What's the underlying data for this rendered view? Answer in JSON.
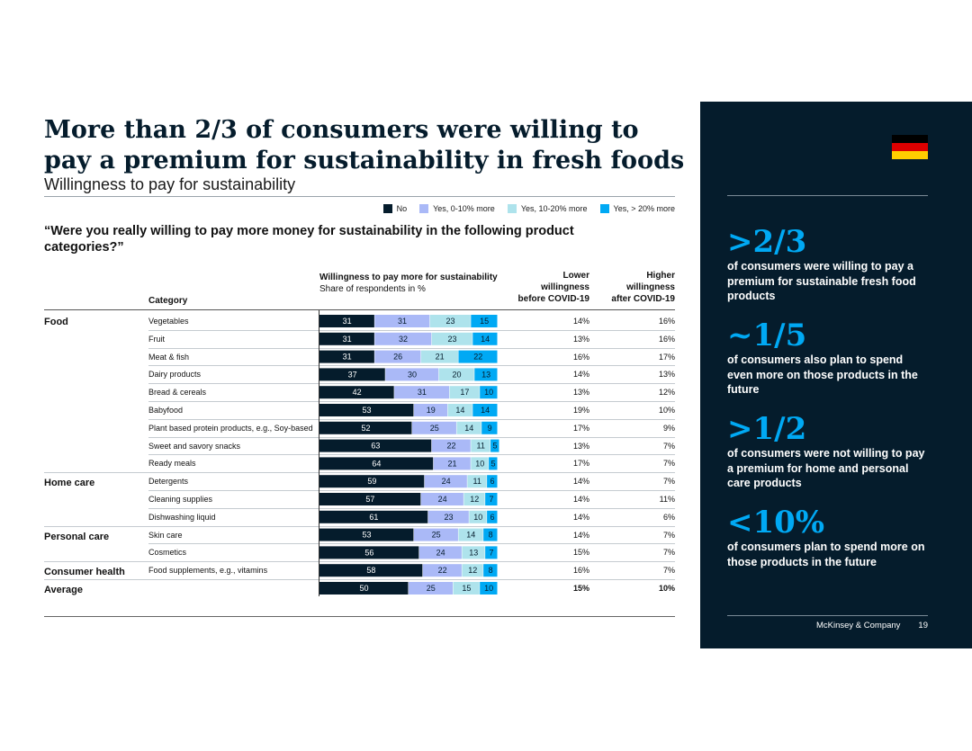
{
  "title": "More than 2/3 of consumers were willing to pay a premium for sustainability in fresh foods",
  "subtitle": "Willingness to pay for sustainability",
  "question": "“Were you really willing to pay more money for sustainability in the following product categories?”",
  "legend": [
    {
      "label": "No",
      "color": "#051c2c"
    },
    {
      "label": "Yes, 0-10% more",
      "color": "#aab9f7"
    },
    {
      "label": "Yes, 10-20% more",
      "color": "#aee3ec"
    },
    {
      "label": "Yes, > 20% more",
      "color": "#00a9f4"
    }
  ],
  "headers": {
    "category": "Category",
    "wtp_bold": "Willingness to pay more for sustainability",
    "wtp_light": "Share of respondents in %",
    "lower_line1": "Lower",
    "lower_line2": "willingness",
    "lower_line3": "before COVID-19",
    "higher_line1": "Higher",
    "higher_line2": "willingness",
    "higher_line3": "after COVID-19"
  },
  "groups": [
    "Food",
    "Home care",
    "Personal care",
    "Consumer health",
    "Average"
  ],
  "chart_data": {
    "type": "bar",
    "orientation": "horizontal-stacked",
    "title": "Willingness to pay more for sustainability",
    "xlabel": "Share of respondents in %",
    "series_names": [
      "No",
      "Yes, 0-10% more",
      "Yes, 10-20% more",
      "Yes, > 20% more"
    ],
    "rows": [
      {
        "group": "Food",
        "label": "Vegetables",
        "values": [
          31,
          31,
          23,
          15
        ],
        "lower": "14%",
        "higher": "16%"
      },
      {
        "group": "",
        "label": "Fruit",
        "values": [
          31,
          32,
          23,
          14
        ],
        "lower": "13%",
        "higher": "16%"
      },
      {
        "group": "",
        "label": "Meat & fish",
        "values": [
          31,
          26,
          21,
          22
        ],
        "lower": "16%",
        "higher": "17%"
      },
      {
        "group": "",
        "label": "Dairy products",
        "values": [
          37,
          30,
          20,
          13
        ],
        "lower": "14%",
        "higher": "13%"
      },
      {
        "group": "",
        "label": "Bread & cereals",
        "values": [
          42,
          31,
          17,
          10
        ],
        "lower": "13%",
        "higher": "12%"
      },
      {
        "group": "",
        "label": "Babyfood",
        "values": [
          53,
          19,
          14,
          14
        ],
        "lower": "19%",
        "higher": "10%"
      },
      {
        "group": "",
        "label": "Plant based protein products, e.g., Soy-based",
        "values": [
          52,
          25,
          14,
          9
        ],
        "lower": "17%",
        "higher": "9%"
      },
      {
        "group": "",
        "label": "Sweet and savory snacks",
        "values": [
          63,
          22,
          11,
          5
        ],
        "lower": "13%",
        "higher": "7%"
      },
      {
        "group": "",
        "label": "Ready meals",
        "values": [
          64,
          21,
          10,
          5
        ],
        "lower": "17%",
        "higher": "7%"
      },
      {
        "group": "Home care",
        "label": "Detergents",
        "values": [
          59,
          24,
          11,
          6
        ],
        "lower": "14%",
        "higher": "7%"
      },
      {
        "group": "",
        "label": "Cleaning supplies",
        "values": [
          57,
          24,
          12,
          7
        ],
        "lower": "14%",
        "higher": "11%"
      },
      {
        "group": "",
        "label": "Dishwashing liquid",
        "values": [
          61,
          23,
          10,
          6
        ],
        "lower": "14%",
        "higher": "6%"
      },
      {
        "group": "Personal care",
        "label": "Skin care",
        "values": [
          53,
          25,
          14,
          8
        ],
        "lower": "14%",
        "higher": "7%"
      },
      {
        "group": "",
        "label": "Cosmetics",
        "values": [
          56,
          24,
          13,
          7
        ],
        "lower": "15%",
        "higher": "7%"
      },
      {
        "group": "Consumer health",
        "label": "Food supplements, e.g., vitamins",
        "values": [
          58,
          22,
          12,
          8
        ],
        "lower": "16%",
        "higher": "7%"
      },
      {
        "group": "Average",
        "label": "",
        "values": [
          50,
          25,
          15,
          10
        ],
        "lower": "15%",
        "higher": "10%"
      }
    ]
  },
  "panel": {
    "flag_colors": [
      "#000000",
      "#dd0000",
      "#ffce00"
    ],
    "stats": [
      {
        "big": ">2/3",
        "text": "of consumers were willing to pay a premium for sustainable fresh food products"
      },
      {
        "big": "~1/5",
        "text": "of consumers also plan to spend even more on those products in the future"
      },
      {
        "big": ">1/2",
        "text": "of consumers were not willing to pay a premium for home and personal care products"
      },
      {
        "big": "<10%",
        "text": "of consumers plan to spend more on those products in the future"
      }
    ],
    "company": "McKinsey & Company",
    "page_number": "19"
  }
}
